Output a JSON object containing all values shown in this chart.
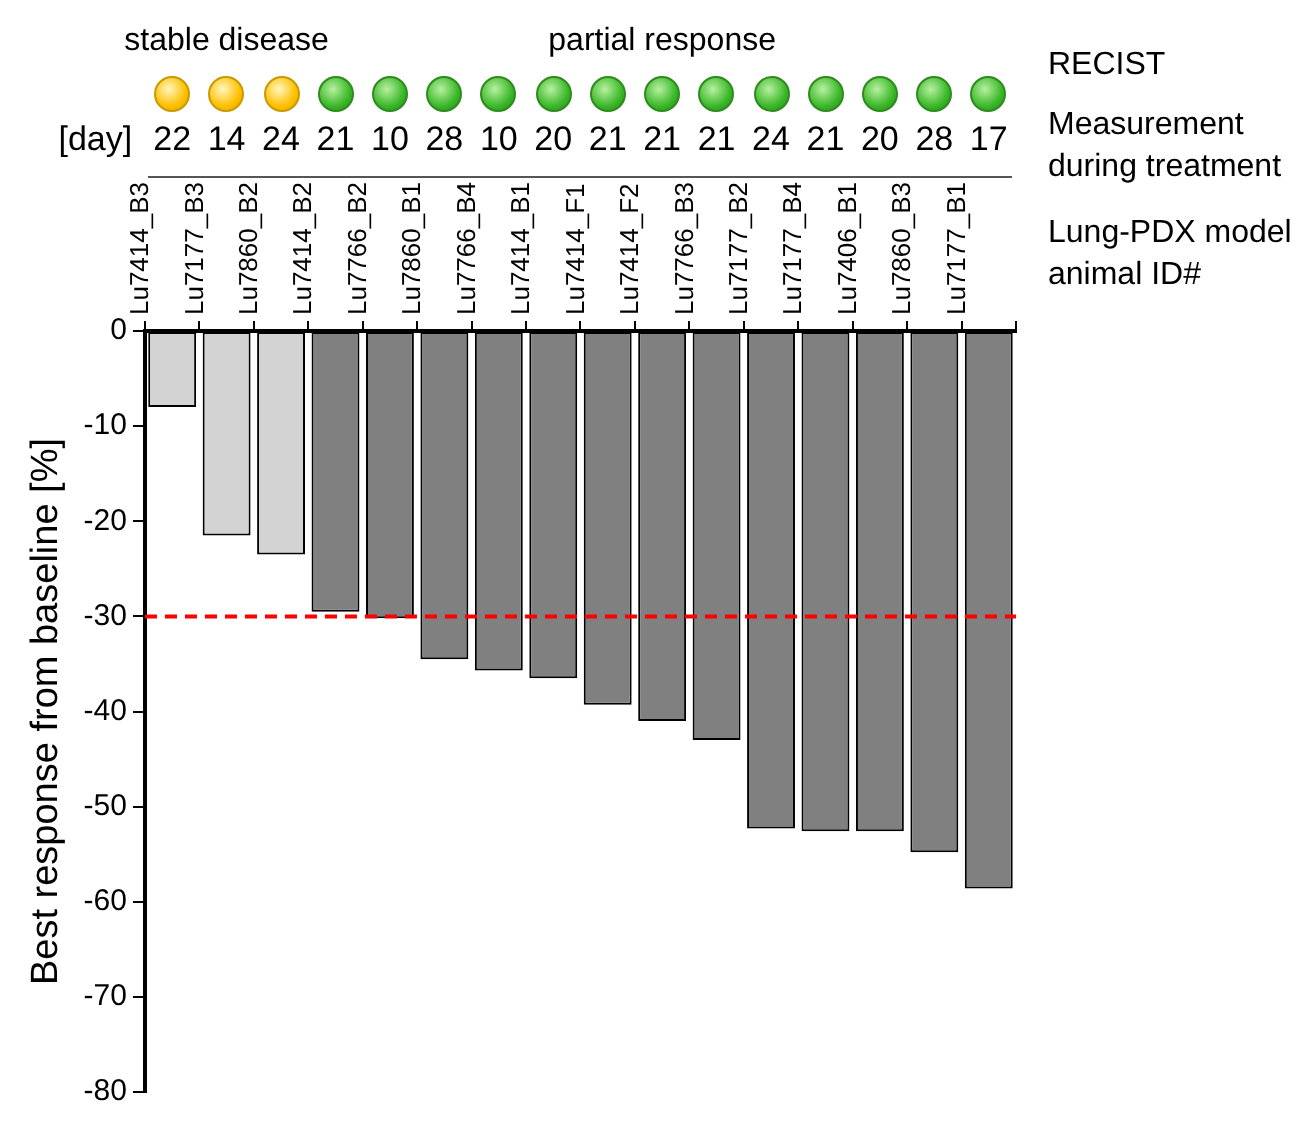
{
  "chart_data": {
    "type": "bar",
    "categories": [
      "Lu7414_B3",
      "Lu7177_B3",
      "Lu7860_B2",
      "Lu7414_B2",
      "Lu7766_B2",
      "Lu7860_B1",
      "Lu7766_B4",
      "Lu7414_B1",
      "Lu7414_F1",
      "Lu7414_F2",
      "Lu7766_B3",
      "Lu7177_B2",
      "Lu7177_B4",
      "Lu7406_B1",
      "Lu7860_B3",
      "Lu7177_B1"
    ],
    "values": [
      -8,
      -21.5,
      -23.5,
      -29.5,
      -30.2,
      -34.5,
      -35.7,
      -36.5,
      -39.3,
      -41,
      -43,
      -52.3,
      -52.6,
      -52.6,
      -54.8,
      -58.6
    ],
    "colors": [
      "#d3d3d3",
      "#d3d3d3",
      "#d3d3d3",
      "#808080",
      "#808080",
      "#808080",
      "#808080",
      "#808080",
      "#808080",
      "#808080",
      "#808080",
      "#808080",
      "#808080",
      "#808080",
      "#808080",
      "#808080"
    ],
    "ylabel": "Best response from baseline [%]",
    "ylim": [
      -80,
      0
    ],
    "yticks": [
      -80,
      -70,
      -60,
      -50,
      -40,
      -30,
      -20,
      -10,
      0
    ],
    "ref_lines": [
      {
        "axis": "y",
        "value": -30,
        "color": "#ff0000",
        "line_style": "dashed"
      }
    ],
    "annotations": [
      "RECIST",
      "Measurement during treatment",
      "Lung-PDX model animal ID#",
      "[day]",
      "stable disease",
      "partial response",
      "22",
      "14",
      "24",
      "21",
      "10",
      "28",
      "10",
      "20",
      "21",
      "21",
      "21",
      "24",
      "21",
      "20",
      "28",
      "17"
    ]
  }
}
